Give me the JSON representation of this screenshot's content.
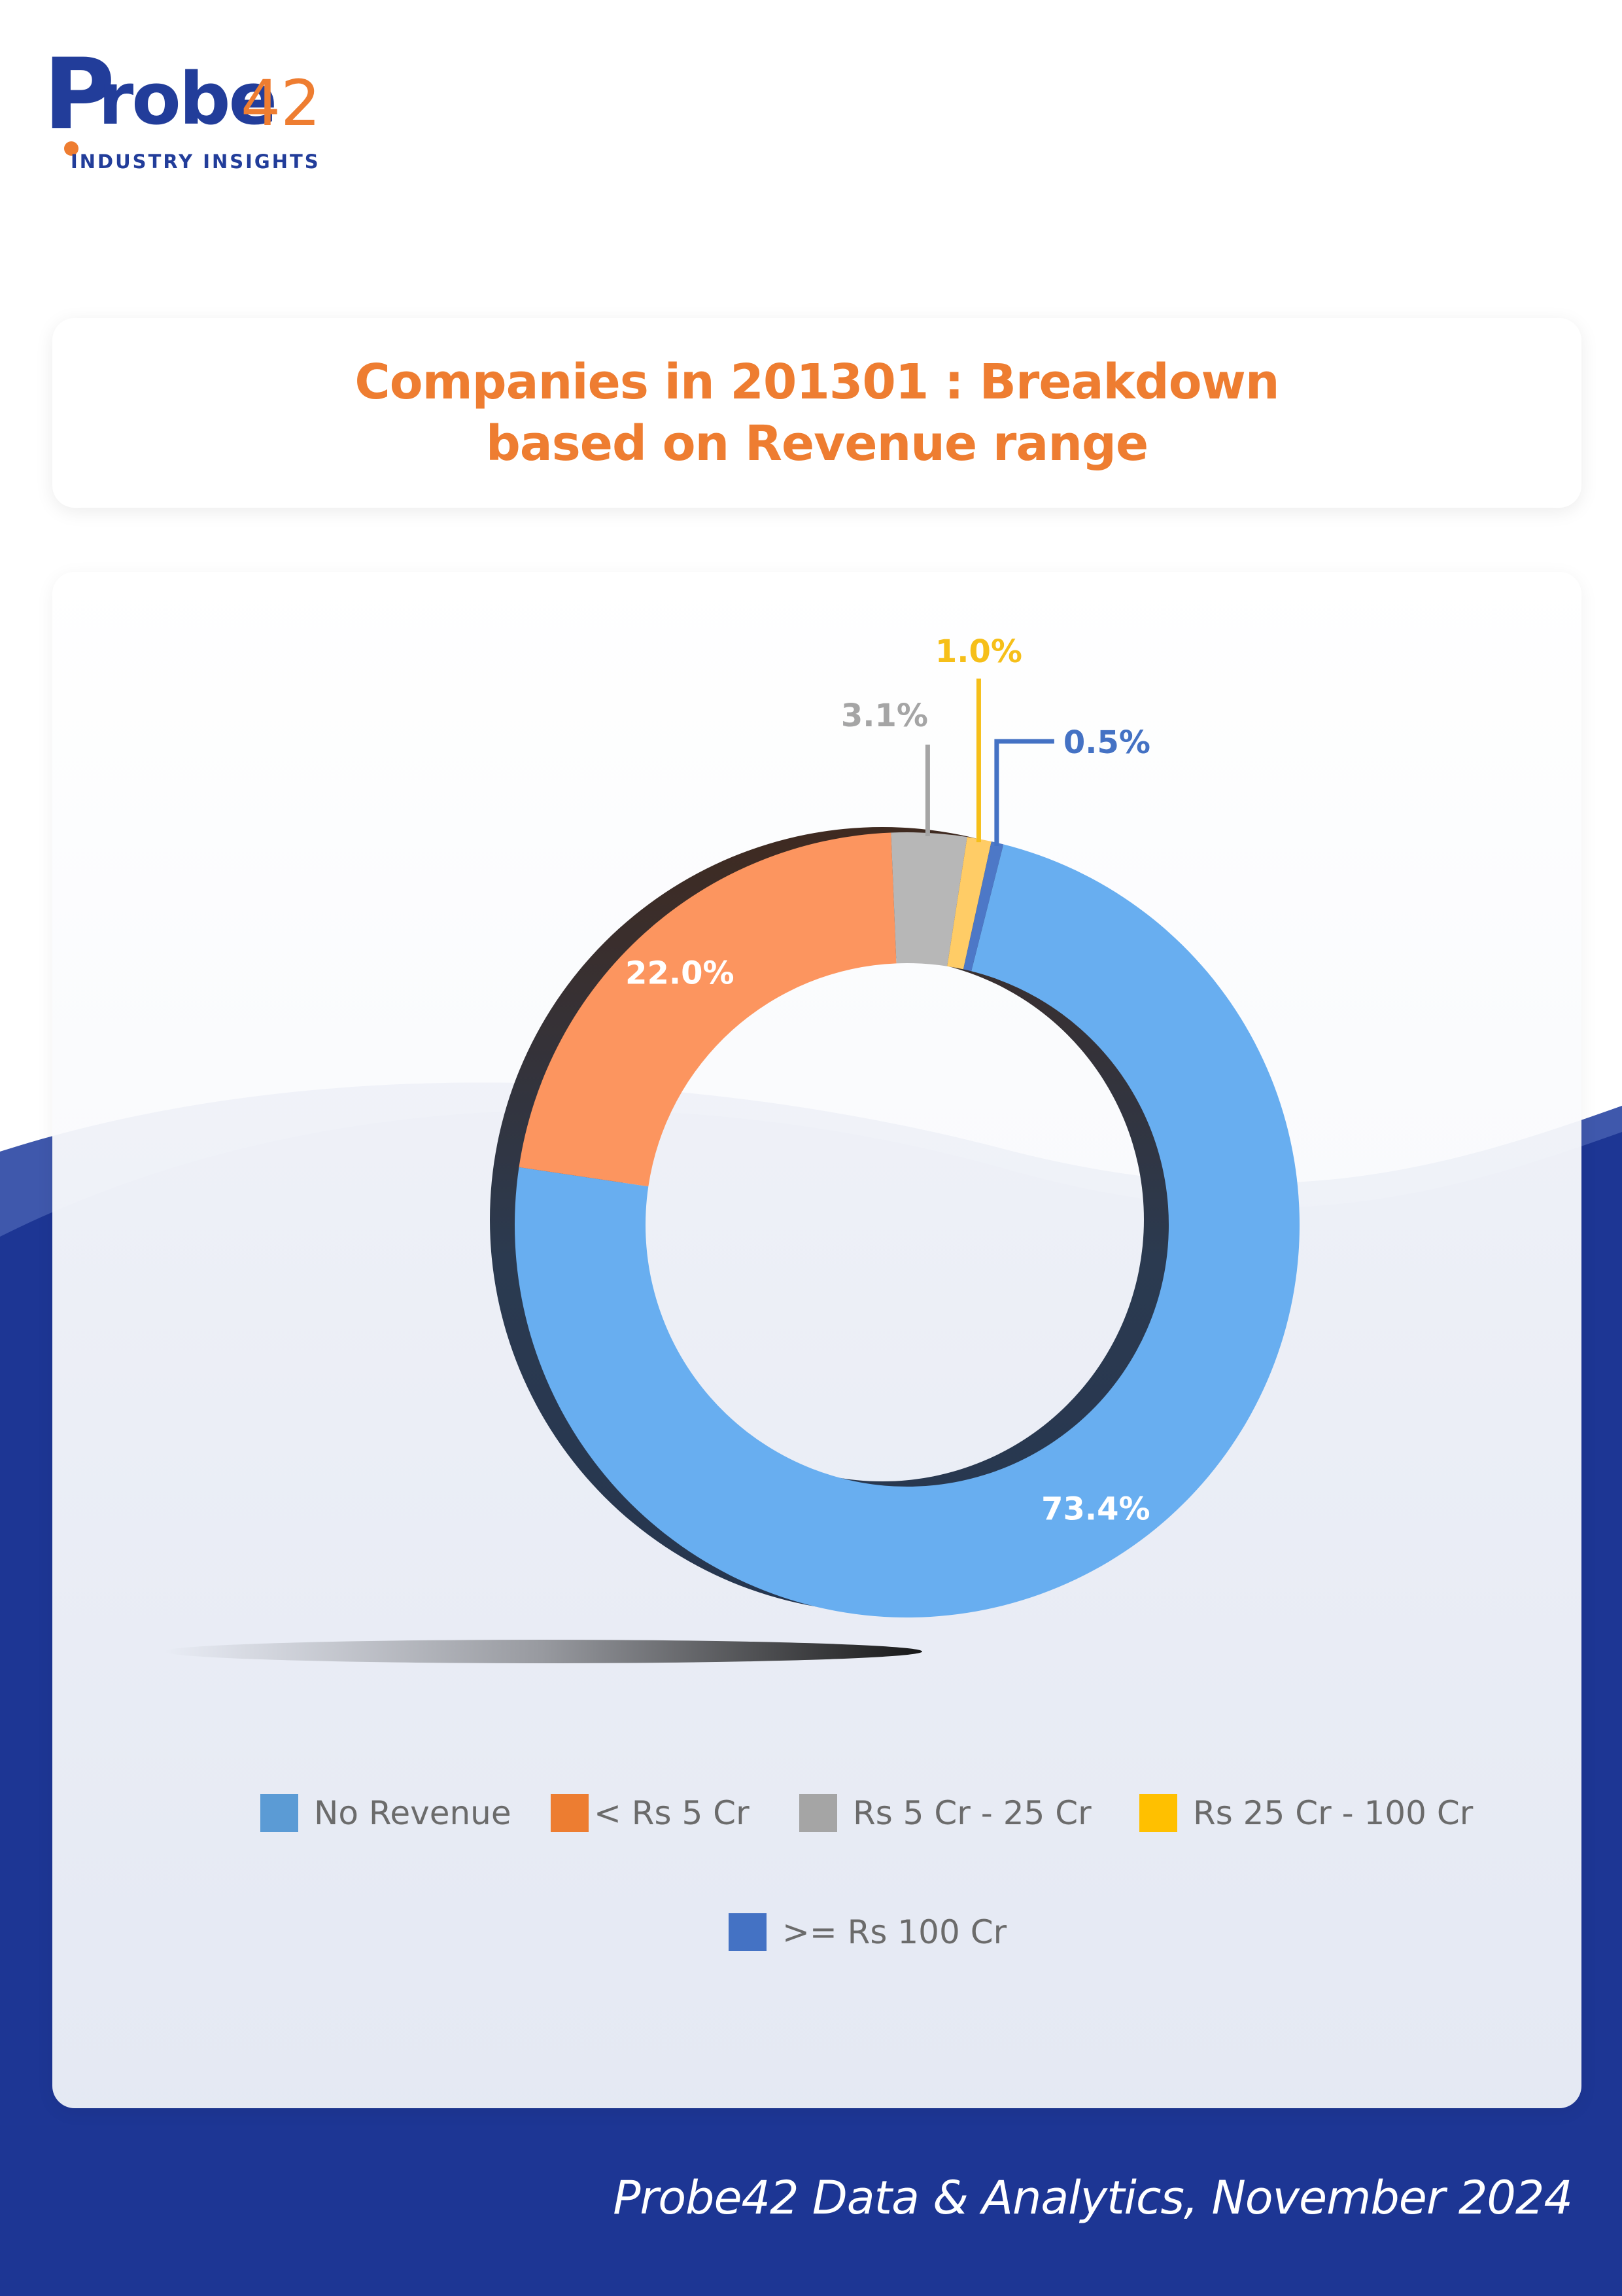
{
  "brand": {
    "logo_main": "Probe",
    "logo_number": "42",
    "tagline": "INDUSTRY INSIGHTS"
  },
  "title": {
    "line1": "Companies in 201301 : Breakdown",
    "line2": "based on Revenue range"
  },
  "footer": "Probe42 Data & Analytics, November 2024",
  "colors": {
    "accent_orange": "#ee7d31",
    "brand_blue": "#223d9a",
    "background_blue": "#1d3694"
  },
  "chart_data": {
    "type": "pie",
    "style": "donut",
    "title": "Companies in 201301 : Breakdown based on Revenue range",
    "categories": [
      "No Revenue",
      "< Rs 5 Cr",
      "Rs 5 Cr - 25 Cr",
      "Rs 25 Cr - 100 Cr",
      ">= Rs 100 Cr"
    ],
    "values": [
      73.4,
      22.0,
      3.1,
      1.0,
      0.5
    ],
    "labels": [
      "73.4%",
      "22.0%",
      "3.1%",
      "1.0%",
      "0.5%"
    ],
    "slice_colors": [
      "#68aef0",
      "#fc955f",
      "#b7b7b7",
      "#ffcc66",
      "#4d78c7"
    ],
    "legend_colors": [
      "#5b9bd5",
      "#ed7d31",
      "#a5a5a5",
      "#ffc000",
      "#4472c4"
    ],
    "label_colors": [
      "#ffffff",
      "#ffffff",
      "#a5a5a5",
      "#f6bf19",
      "#4472c4"
    ],
    "legend_position": "bottom"
  }
}
